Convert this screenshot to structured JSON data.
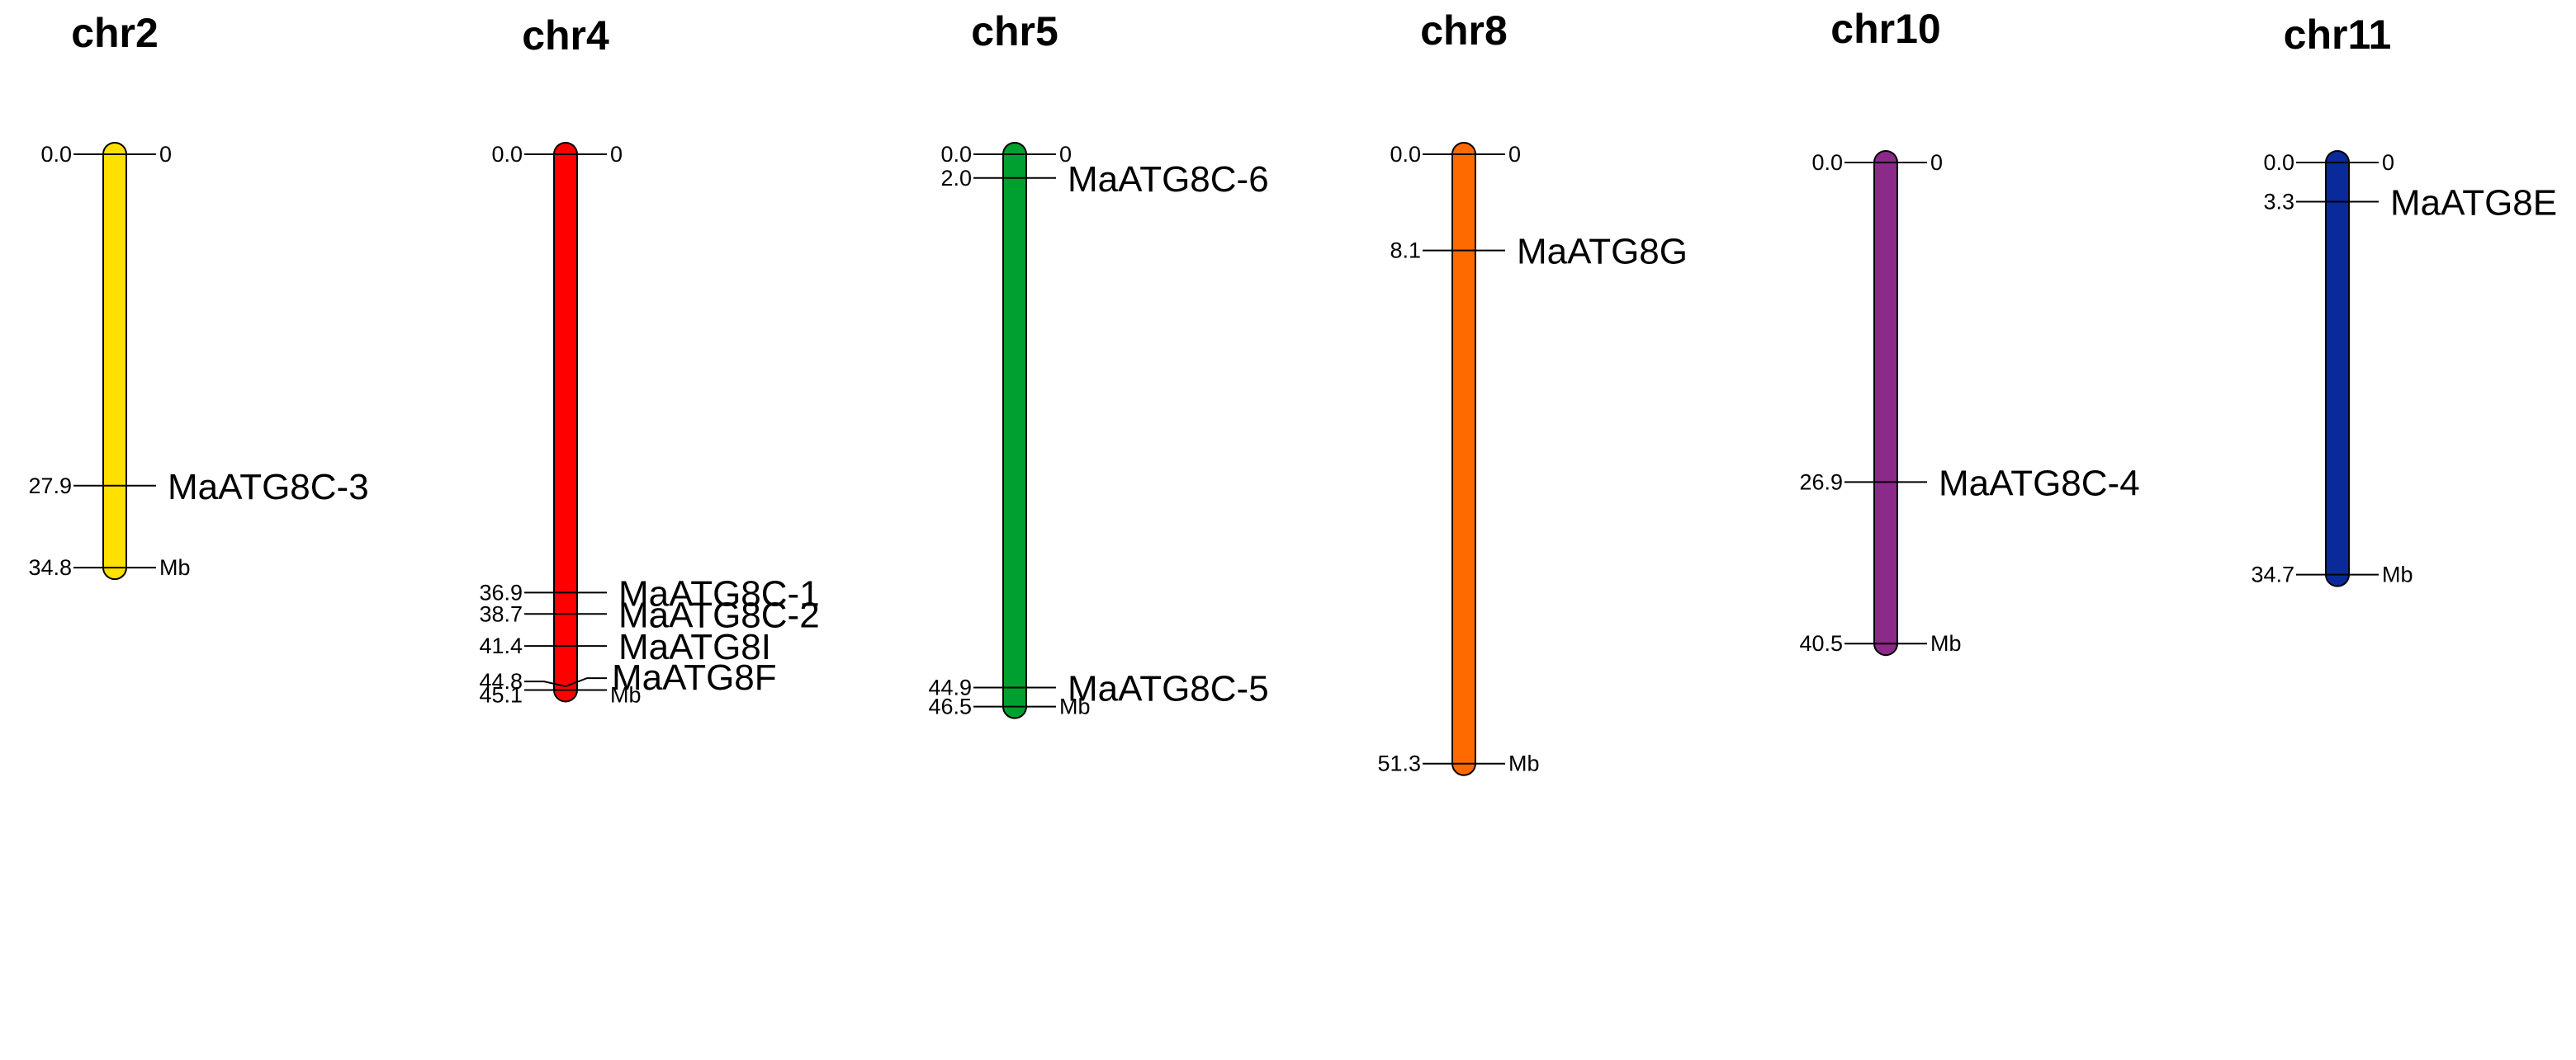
{
  "unit_label": "Mb",
  "chromosomes": [
    {
      "name": "chr2",
      "color": "#FFE000",
      "length": 34.8,
      "start_label": "0.0",
      "start_right_label": "0",
      "end_label": "34.8",
      "genes": [
        {
          "pos": 27.9,
          "pos_label": "27.9",
          "name": "MaATG8C-3"
        }
      ]
    },
    {
      "name": "chr4",
      "color": "#FF0000",
      "length": 45.1,
      "start_label": "0.0",
      "start_right_label": "0",
      "end_label": "45.1",
      "genes": [
        {
          "pos": 36.9,
          "pos_label": "36.9",
          "name": "MaATG8C-1"
        },
        {
          "pos": 38.7,
          "pos_label": "38.7",
          "name": "MaATG8C-2"
        },
        {
          "pos": 41.4,
          "pos_label": "41.4",
          "name": "MaATG8I"
        },
        {
          "pos": 44.8,
          "pos_label": "44.8",
          "name": "MaATG8F"
        }
      ]
    },
    {
      "name": "chr5",
      "color": "#00A030",
      "length": 46.5,
      "start_label": "0.0",
      "start_right_label": "0",
      "end_label": "46.5",
      "genes": [
        {
          "pos": 2.0,
          "pos_label": "2.0",
          "name": "MaATG8C-6"
        },
        {
          "pos": 44.9,
          "pos_label": "44.9",
          "name": "MaATG8C-5"
        }
      ]
    },
    {
      "name": "chr8",
      "color": "#FF6A00",
      "length": 51.3,
      "start_label": "0.0",
      "start_right_label": "0",
      "end_label": "51.3",
      "genes": [
        {
          "pos": 8.1,
          "pos_label": "8.1",
          "name": "MaATG8G"
        }
      ]
    },
    {
      "name": "chr10",
      "color": "#8B2A8B",
      "length": 40.5,
      "start_label": "0.0",
      "start_right_label": "0",
      "end_label": "40.5",
      "genes": [
        {
          "pos": 26.9,
          "pos_label": "26.9",
          "name": "MaATG8C-4"
        }
      ]
    },
    {
      "name": "chr11",
      "color": "#0A2A9A",
      "length": 34.7,
      "start_label": "0.0",
      "start_right_label": "0",
      "end_label": "34.7",
      "genes": [
        {
          "pos": 3.3,
          "pos_label": "3.3",
          "name": "MaATG8E"
        }
      ]
    }
  ]
}
